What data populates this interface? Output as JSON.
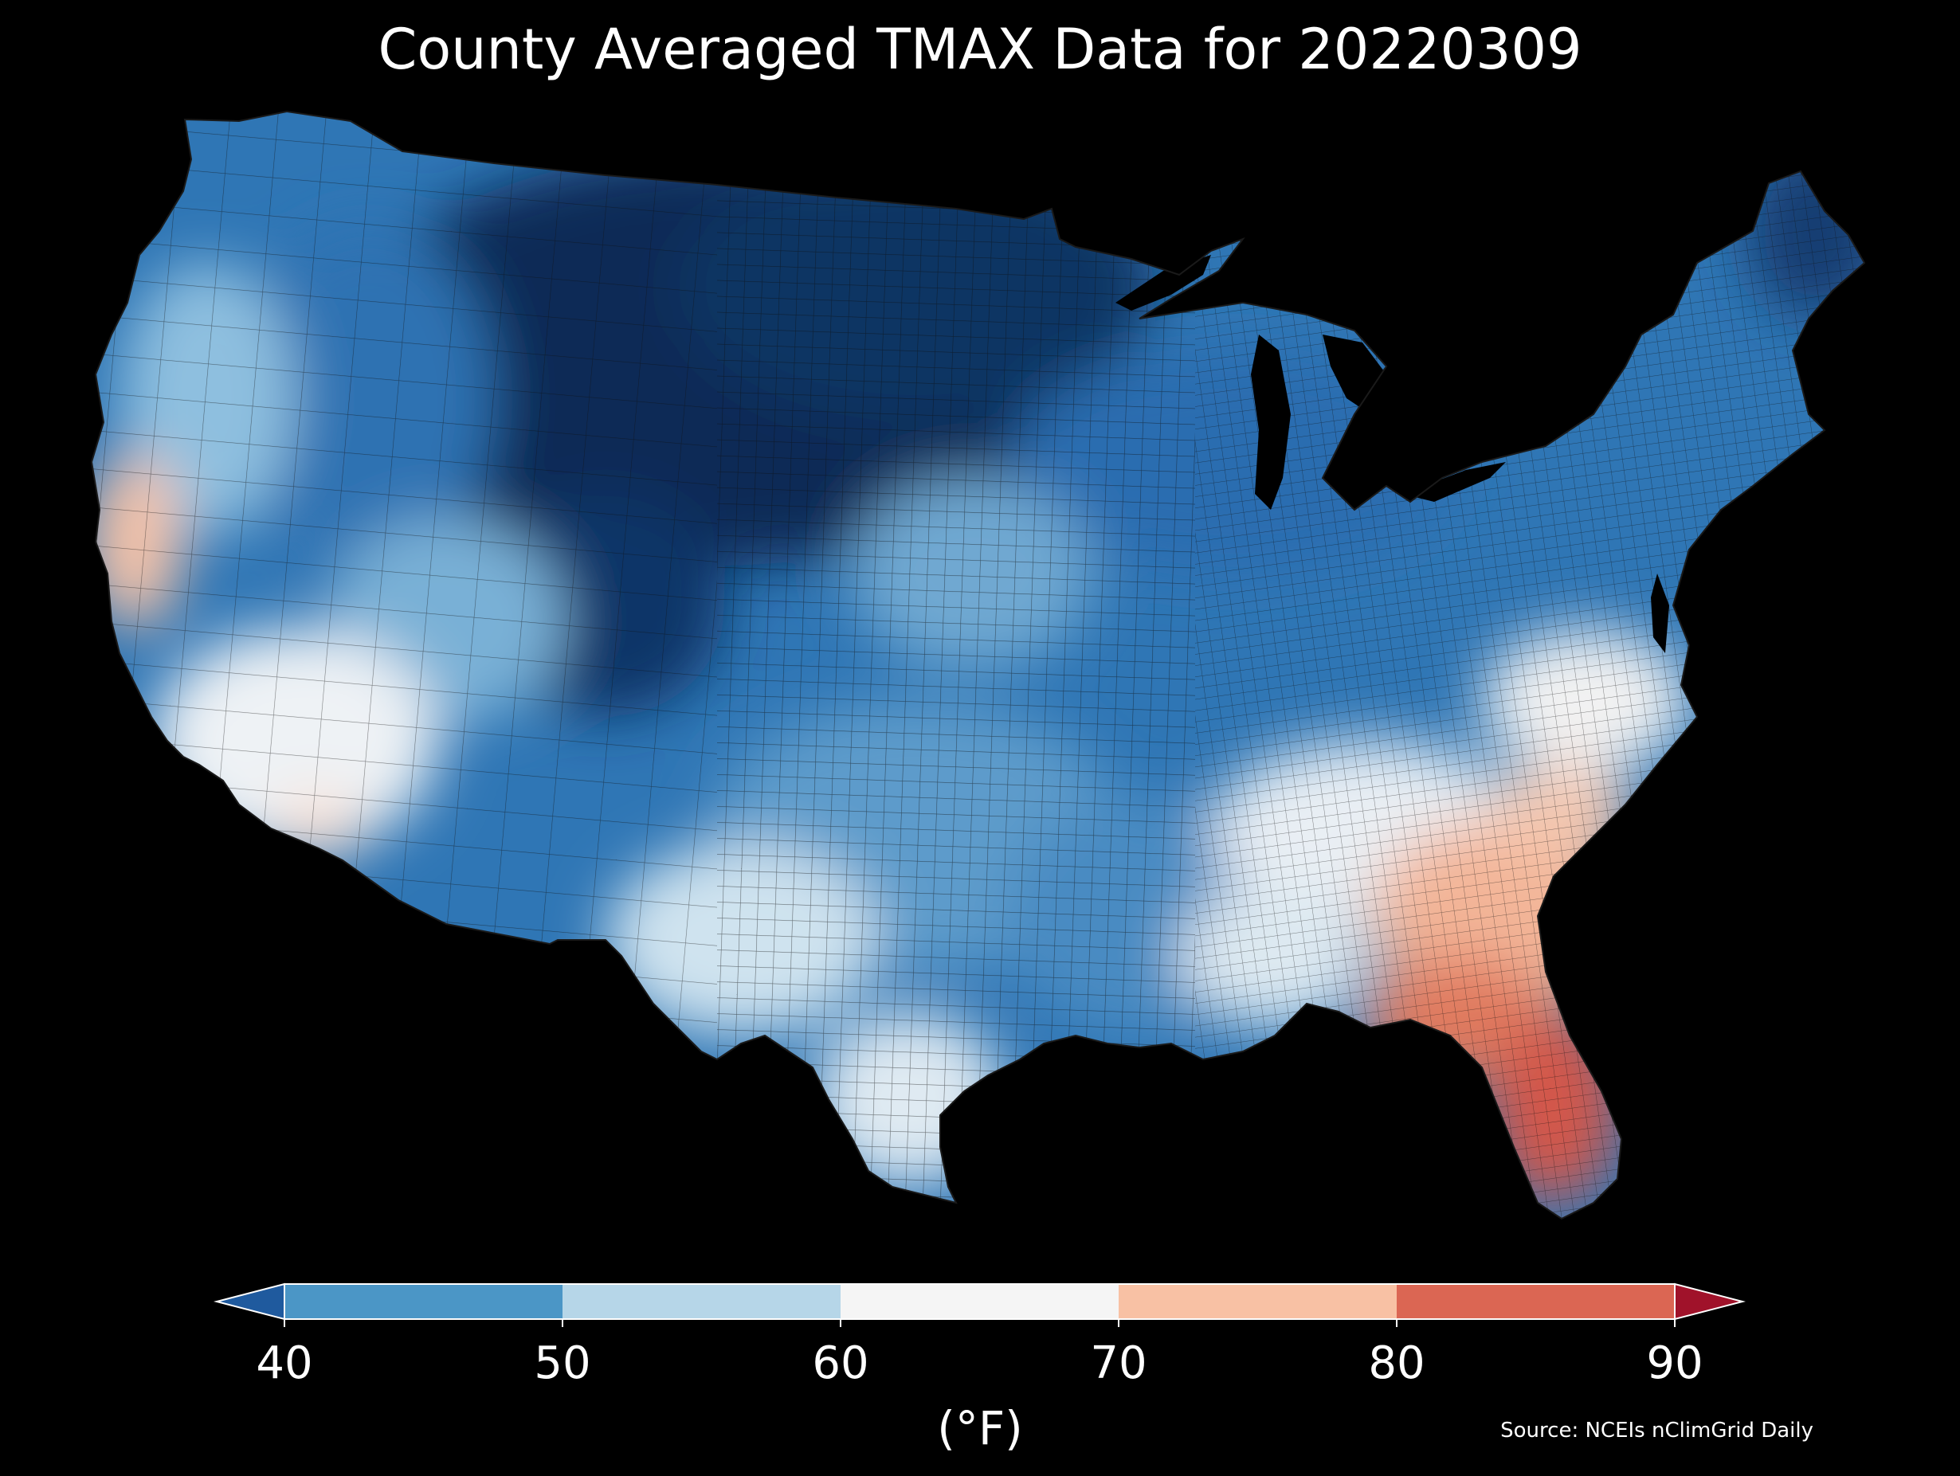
{
  "title": "County Averaged TMAX Data for 20220309",
  "colorbar": {
    "unit": "(°F)",
    "ticks": [
      "40",
      "50",
      "60",
      "70",
      "80",
      "90"
    ],
    "bins": [
      {
        "range": "<40",
        "color": "#1f5a9e"
      },
      {
        "range": "40-50",
        "color": "#4b96c6"
      },
      {
        "range": "50-60",
        "color": "#b6d6e8"
      },
      {
        "range": "60-70",
        "color": "#f5f5f5"
      },
      {
        "range": "70-80",
        "color": "#f8c1a4"
      },
      {
        "range": "80-90",
        "color": "#db6653"
      },
      {
        "range": ">90",
        "color": "#a0122a"
      }
    ]
  },
  "source": "Source: NCEIs nClimGrid Daily",
  "map": {
    "region": "Contiguous United States, county-level",
    "variable": "TMAX",
    "date": "20220309",
    "colors": {
      "background": "#000000",
      "darkest_blue": "#0b2b57",
      "dark_blue": "#1b4f8f",
      "mid_blue": "#2c74b6",
      "light_blue": "#4b96c6",
      "pale_blue": "#b6d6e8",
      "near_white": "#eef2f5",
      "light_red": "#f8c1a4",
      "mid_red": "#e07a5f",
      "red": "#d4574a"
    }
  }
}
